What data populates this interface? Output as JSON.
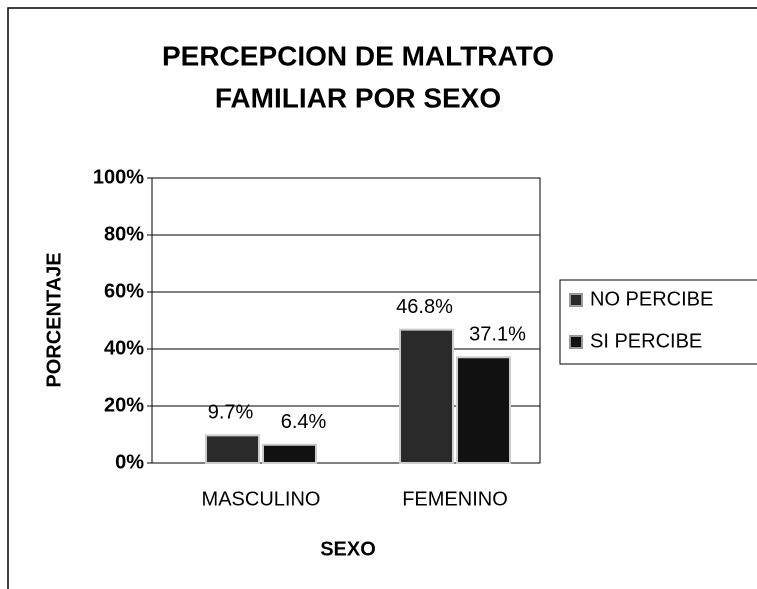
{
  "chart_data": {
    "type": "bar",
    "title": [
      "PERCEPCION DE MALTRATO",
      "FAMILIAR POR SEXO"
    ],
    "xlabel": "SEXO",
    "ylabel": "PORCENTAJE",
    "categories": [
      "MASCULINO",
      "FEMENINO"
    ],
    "series": [
      {
        "name": "NO PERCIBE",
        "color": "#2a2a2a",
        "values": [
          9.7,
          46.8
        ],
        "value_labels": [
          "9.7%",
          "46.8%"
        ]
      },
      {
        "name": "SI PERCIBE",
        "color": "#111111",
        "values": [
          6.4,
          37.1
        ],
        "value_labels": [
          "6.4%",
          "37.1%"
        ]
      }
    ],
    "ylim": [
      0,
      100
    ],
    "yticks": [
      {
        "value": 0,
        "label": "0%"
      },
      {
        "value": 20,
        "label": "20%"
      },
      {
        "value": 40,
        "label": "40%"
      },
      {
        "value": 60,
        "label": "60%"
      },
      {
        "value": 80,
        "label": "80%"
      },
      {
        "value": 100,
        "label": "100%"
      }
    ],
    "grid": true,
    "legend": "right"
  }
}
